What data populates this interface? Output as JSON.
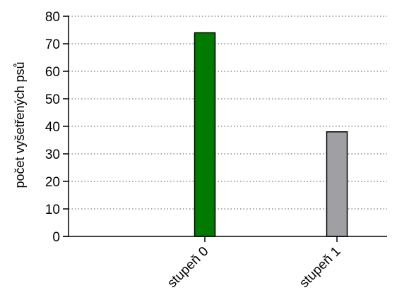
{
  "chart_data": {
    "type": "bar",
    "title": "",
    "xlabel": "",
    "ylabel": "počet vyšetřených psů",
    "ylim": [
      0,
      80
    ],
    "yticks": [
      0,
      10,
      20,
      30,
      40,
      50,
      60,
      70,
      80
    ],
    "grid": true,
    "categories": [
      "stupeň 0",
      "stupeň 1"
    ],
    "values": [
      74,
      38
    ],
    "colors": [
      "#007a00",
      "#a0a0a4"
    ]
  }
}
